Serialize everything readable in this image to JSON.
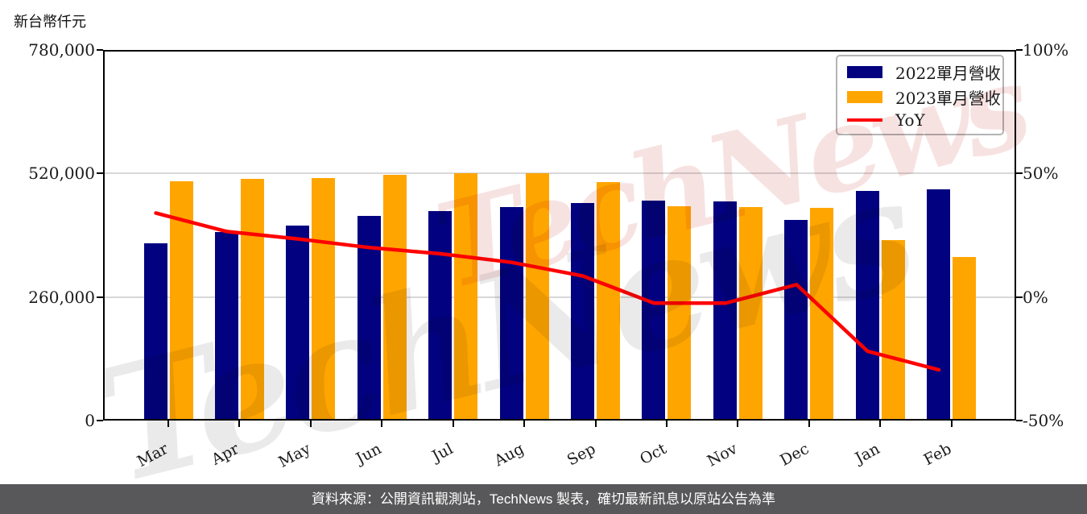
{
  "title": "新台幣仟元",
  "watermark": {
    "text": "TechNews",
    "gray_color": "#eaeaea",
    "pink_color": "#f7e2e2"
  },
  "legend": {
    "items": [
      {
        "label": "2022單月營收",
        "swatch": "#020280",
        "kind": "bar"
      },
      {
        "label": "2023單月營收",
        "swatch": "#FFA500",
        "kind": "bar"
      },
      {
        "label": "YoY",
        "swatch": "#FF0000",
        "kind": "line"
      }
    ]
  },
  "footer": {
    "text": "資料來源：公開資訊觀測站，TechNews 製表，確切最新訊息以原站公告為準",
    "bg": "#58585a"
  },
  "colors": {
    "bar_2022": "#020280",
    "bar_2023": "#FFA500",
    "yoy_line": "#FF0000",
    "grid": "#d8d8d8",
    "spine": "#000000"
  },
  "chart_data": {
    "type": "bar",
    "subtype": "grouped bars + YoY line on secondary axis",
    "categories": [
      "Mar",
      "Apr",
      "May",
      "Jun",
      "Jul",
      "Aug",
      "Sep",
      "Oct",
      "Nov",
      "Dec",
      "Jan",
      "Feb"
    ],
    "series": [
      {
        "name": "2022單月營收",
        "type": "bar",
        "axis": "left",
        "color": "#020280",
        "values": [
          373000,
          397000,
          411000,
          430000,
          441000,
          450000,
          457000,
          463000,
          461000,
          423000,
          484000,
          486000
        ]
      },
      {
        "name": "2023單月營收",
        "type": "bar",
        "axis": "left",
        "color": "#FFA500",
        "values": [
          503000,
          508000,
          511000,
          518000,
          521000,
          520000,
          502000,
          451000,
          450000,
          447000,
          380000,
          345000
        ]
      },
      {
        "name": "YoY",
        "type": "line",
        "axis": "right",
        "color": "#FF0000",
        "unit": "%",
        "values": [
          34,
          26.5,
          23.5,
          20,
          17.5,
          14,
          8.5,
          -2.5,
          -2.5,
          5,
          -22,
          -29.5
        ]
      }
    ],
    "left_axis": {
      "title": "新台幣仟元",
      "range": [
        0,
        780000
      ],
      "ticks": [
        {
          "value": 0,
          "label": "0"
        },
        {
          "value": 260000,
          "label": "260,000"
        },
        {
          "value": 520000,
          "label": "520,000"
        },
        {
          "value": 780000,
          "label": "780,000"
        }
      ]
    },
    "right_axis": {
      "range": [
        -50,
        100
      ],
      "unit": "%",
      "ticks": [
        {
          "value": -50,
          "label": "-50%"
        },
        {
          "value": 0,
          "label": "0%"
        },
        {
          "value": 50,
          "label": "50%"
        },
        {
          "value": 100,
          "label": "100%"
        }
      ]
    },
    "grid": "horizontal gridlines at intermediate ticks",
    "legend_position": "upper right inside plot"
  }
}
